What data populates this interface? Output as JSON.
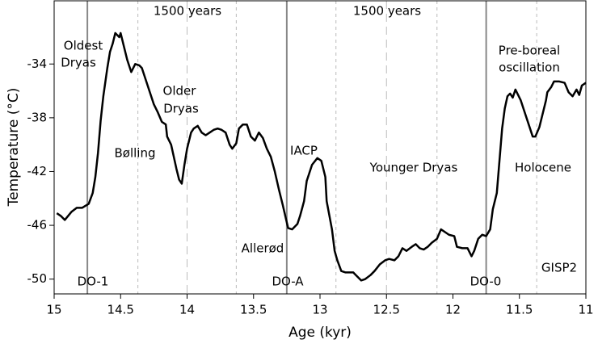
{
  "chart_data": {
    "type": "line",
    "x_label": "Age (kyr)",
    "y_label": "Temperature (°C)",
    "xlim": [
      15,
      11
    ],
    "xticks": [
      15,
      14.5,
      14,
      13.5,
      13,
      12.5,
      12,
      11.5,
      11
    ],
    "ylim": [
      -51.1,
      -29.3
    ],
    "yticks": [
      -34,
      -38,
      -42,
      -46,
      -50
    ],
    "series": [
      {
        "color": "#000000",
        "x": [
          14.98,
          14.95,
          14.92,
          14.87,
          14.83,
          14.79,
          14.74,
          14.71,
          14.69,
          14.67,
          14.65,
          14.63,
          14.6,
          14.58,
          14.56,
          14.54,
          14.51,
          14.5,
          14.48,
          14.45,
          14.43,
          14.42,
          14.39,
          14.36,
          14.34,
          14.31,
          14.28,
          14.25,
          14.22,
          14.19,
          14.16,
          14.15,
          14.12,
          14.1,
          14.08,
          14.06,
          14.04,
          14.02,
          14.0,
          13.97,
          13.95,
          13.92,
          13.89,
          13.86,
          13.83,
          13.8,
          13.77,
          13.74,
          13.71,
          13.68,
          13.66,
          13.63,
          13.61,
          13.58,
          13.55,
          13.52,
          13.49,
          13.46,
          13.43,
          13.4,
          13.37,
          13.34,
          13.31,
          13.28,
          13.24,
          13.21,
          13.17,
          13.15,
          13.12,
          13.1,
          13.06,
          13.02,
          12.99,
          12.96,
          12.95,
          12.91,
          12.89,
          12.87,
          12.84,
          12.81,
          12.78,
          12.75,
          12.73,
          12.69,
          12.66,
          12.62,
          12.59,
          12.55,
          12.51,
          12.48,
          12.44,
          12.41,
          12.38,
          12.35,
          12.31,
          12.28,
          12.25,
          12.22,
          12.19,
          12.16,
          12.12,
          12.09,
          12.06,
          12.03,
          11.99,
          11.97,
          11.93,
          11.89,
          11.86,
          11.84,
          11.81,
          11.78,
          11.75,
          11.72,
          11.7,
          11.67,
          11.65,
          11.63,
          11.61,
          11.59,
          11.57,
          11.55,
          11.53,
          11.51,
          11.49,
          11.46,
          11.43,
          11.4,
          11.38,
          11.35,
          11.33,
          11.3,
          11.29,
          11.26,
          11.24,
          11.2,
          11.16,
          11.13,
          11.1,
          11.07,
          11.05,
          11.03,
          11.0
        ],
        "values": [
          -45.1,
          -45.3,
          -45.6,
          -45.0,
          -44.7,
          -44.7,
          -44.4,
          -43.6,
          -42.4,
          -40.6,
          -38.2,
          -36.4,
          -34.3,
          -33.1,
          -32.5,
          -31.7,
          -32.0,
          -31.7,
          -32.5,
          -33.7,
          -34.3,
          -34.6,
          -34.0,
          -34.1,
          -34.3,
          -35.2,
          -36.1,
          -37.0,
          -37.6,
          -38.3,
          -38.5,
          -39.4,
          -40.0,
          -40.9,
          -41.8,
          -42.6,
          -42.9,
          -41.5,
          -40.3,
          -39.1,
          -38.8,
          -38.6,
          -39.1,
          -39.3,
          -39.1,
          -38.9,
          -38.8,
          -38.9,
          -39.1,
          -40.0,
          -40.3,
          -39.9,
          -38.8,
          -38.5,
          -38.5,
          -39.4,
          -39.7,
          -39.1,
          -39.5,
          -40.3,
          -40.9,
          -42.0,
          -43.3,
          -44.5,
          -46.2,
          -46.3,
          -45.9,
          -45.3,
          -44.2,
          -42.7,
          -41.5,
          -41.0,
          -41.2,
          -42.4,
          -44.2,
          -46.3,
          -47.9,
          -48.6,
          -49.4,
          -49.5,
          -49.5,
          -49.5,
          -49.7,
          -50.1,
          -50.0,
          -49.7,
          -49.4,
          -48.9,
          -48.6,
          -48.5,
          -48.6,
          -48.3,
          -47.7,
          -47.9,
          -47.6,
          -47.4,
          -47.7,
          -47.8,
          -47.6,
          -47.3,
          -47.0,
          -46.3,
          -46.5,
          -46.7,
          -46.8,
          -47.6,
          -47.7,
          -47.7,
          -48.3,
          -47.9,
          -47.0,
          -46.7,
          -46.8,
          -46.3,
          -44.8,
          -43.6,
          -41.2,
          -38.8,
          -37.3,
          -36.4,
          -36.2,
          -36.5,
          -35.9,
          -36.3,
          -36.7,
          -37.6,
          -38.5,
          -39.4,
          -39.4,
          -38.7,
          -37.9,
          -36.7,
          -36.1,
          -35.7,
          -35.3,
          -35.3,
          -35.4,
          -36.1,
          -36.4,
          -35.9,
          -36.3,
          -35.6,
          -35.4
        ]
      }
    ],
    "event_lines": [
      14.75,
      13.25,
      11.75
    ],
    "event_line_color": "#888888",
    "stadial_lines": [
      14.37,
      14.0,
      13.63,
      12.88,
      12.5,
      12.12,
      11.37
    ],
    "stadial_line_color": "#bbbbbb",
    "annotations": [
      "1500 years",
      "1500 years",
      "Oldest",
      "Dryas",
      "Bølling",
      "Older",
      "Dryas",
      "Allerød",
      "IACP",
      "Younger Dryas",
      "Pre-boreal",
      "oscillation",
      "Holocene",
      "DO-1",
      "DO-A",
      "DO-0",
      "GISP2"
    ]
  }
}
